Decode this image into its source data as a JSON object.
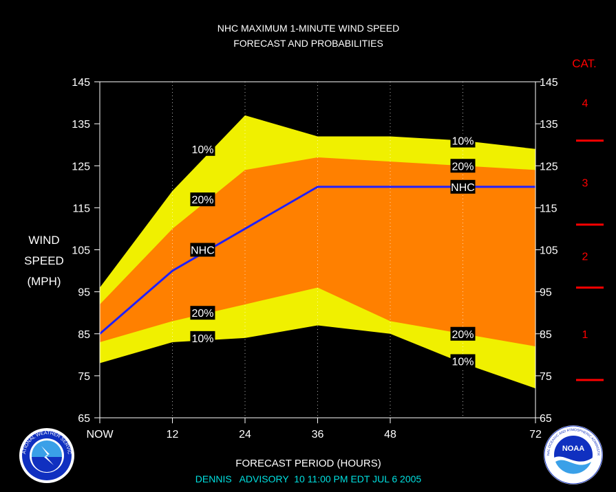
{
  "chart_data": {
    "type": "area",
    "title_line1": "NHC MAXIMUM 1-MINUTE WIND SPEED",
    "title_line2": "FORECAST AND PROBABILITIES",
    "ylabel_lines": [
      "WIND",
      "SPEED",
      "(MPH)"
    ],
    "xlabel": "FORECAST PERIOD (HOURS)",
    "subtitle": "DENNIS   ADVISORY  10 11:00 PM EDT JUL 6 2005",
    "ylim": [
      65,
      145
    ],
    "xlim": [
      0,
      72
    ],
    "y_ticks": [
      65,
      75,
      85,
      95,
      105,
      115,
      125,
      135,
      145
    ],
    "x_ticks": [
      {
        "value": 0,
        "label": "NOW"
      },
      {
        "value": 12,
        "label": "12"
      },
      {
        "value": 24,
        "label": "24"
      },
      {
        "value": 36,
        "label": "36"
      },
      {
        "value": 48,
        "label": "48"
      },
      {
        "value": 72,
        "label": "72"
      }
    ],
    "grid_x": [
      12,
      24,
      36,
      48,
      60
    ],
    "x": [
      0,
      12,
      24,
      36,
      48,
      60,
      72
    ],
    "bands": [
      {
        "name": "10%",
        "color": "#f0f000",
        "upper": [
          96,
          119,
          137,
          132,
          132,
          131,
          129
        ],
        "lower": [
          78,
          83,
          84,
          87,
          85,
          78,
          72
        ]
      },
      {
        "name": "20%",
        "color": "#ff8000",
        "upper": [
          92,
          110,
          124,
          127,
          126,
          125,
          124
        ],
        "lower": [
          83,
          88,
          92,
          96,
          88,
          85,
          82
        ]
      }
    ],
    "forecast_line": {
      "name": "NHC",
      "color": "#2020ff",
      "values": [
        85,
        100,
        110,
        120,
        120,
        120,
        120
      ]
    },
    "band_labels": [
      {
        "text": "10%",
        "x": 17,
        "y": 129
      },
      {
        "text": "20%",
        "x": 17,
        "y": 117
      },
      {
        "text": "NHC",
        "x": 17,
        "y": 105
      },
      {
        "text": "20%",
        "x": 17,
        "y": 90
      },
      {
        "text": "10%",
        "x": 17,
        "y": 84
      },
      {
        "text": "10%",
        "x": 60,
        "y": 131
      },
      {
        "text": "20%",
        "x": 60,
        "y": 125
      },
      {
        "text": "NHC",
        "x": 60,
        "y": 120
      },
      {
        "text": "20%",
        "x": 60,
        "y": 85
      },
      {
        "text": "10%",
        "x": 60,
        "y": 78.5
      }
    ],
    "category_scale": {
      "header": "CAT.",
      "color": "#ff0000",
      "boundaries": [
        74,
        96,
        111,
        131
      ],
      "labels": [
        {
          "text": "1",
          "y": 85
        },
        {
          "text": "2",
          "y": 103.5
        },
        {
          "text": "3",
          "y": 121
        },
        {
          "text": "4",
          "y": 140
        }
      ]
    },
    "colors": {
      "background": "#000000",
      "axes": "#ffffff",
      "subtitle": "#00e0e0"
    }
  },
  "logos": {
    "nws": {
      "icon": "nws-logo",
      "text": "NATIONAL WEATHER SERVICE"
    },
    "noaa": {
      "icon": "noaa-logo",
      "text": "NOAA",
      "ring_text": "NATIONAL OCEANIC AND ATMOSPHERIC ADMINISTRATION"
    }
  }
}
